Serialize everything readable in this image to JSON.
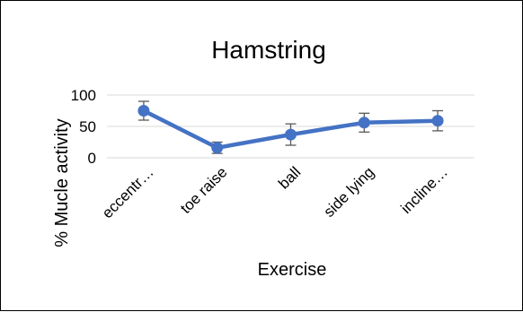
{
  "chart_data": {
    "type": "line",
    "title": "Hamstring",
    "xlabel": "Exercise",
    "ylabel": "% Mucle activity",
    "categories": [
      "eccentr…",
      "toe raise",
      "ball",
      "side lying",
      "incline…"
    ],
    "series": [
      {
        "values": [
          75,
          16,
          37,
          56,
          59
        ],
        "error": [
          15,
          9,
          17,
          15,
          16
        ],
        "color": "#4472C4"
      }
    ],
    "ylim": [
      0,
      100
    ],
    "yticks": [
      0,
      50,
      100
    ],
    "grid": true,
    "legend": "none",
    "gridline_color": "#D9D9D9",
    "errorbar_color": "#595959"
  }
}
